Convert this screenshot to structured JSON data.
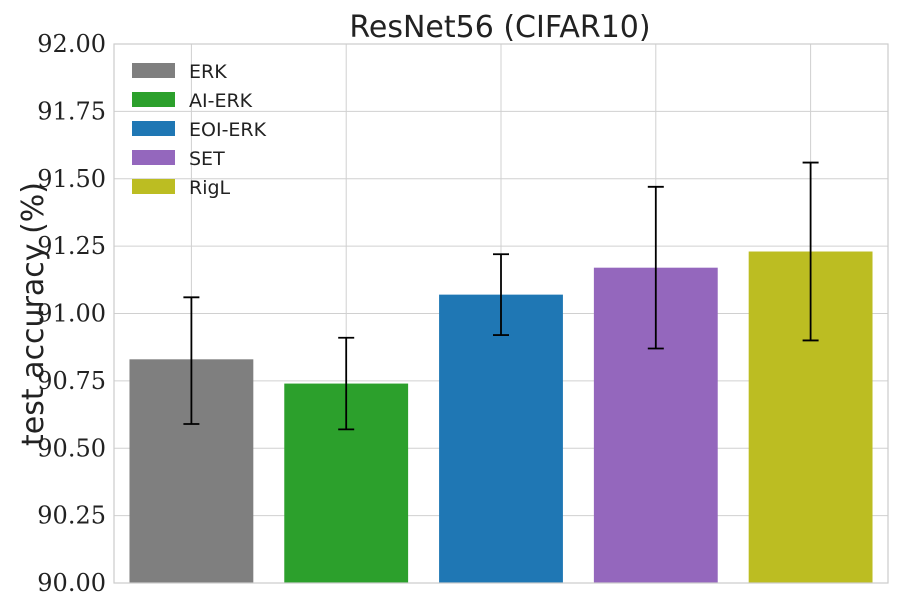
{
  "chart_data": {
    "type": "bar",
    "title": "ResNet56 (CIFAR10)",
    "xlabel": "",
    "ylabel": "test accuracy (%)",
    "ylim": [
      90.0,
      92.0
    ],
    "yticks": [
      "90.00",
      "90.25",
      "90.50",
      "90.75",
      "91.00",
      "91.25",
      "91.50",
      "91.75",
      "92.00"
    ],
    "ytick_values": [
      90.0,
      90.25,
      90.5,
      90.75,
      91.0,
      91.25,
      91.5,
      91.75,
      92.0
    ],
    "grid": true,
    "legend_position": "top-left",
    "series": [
      {
        "name": "ERK",
        "value": 90.83,
        "err_low": 90.59,
        "err_high": 91.06,
        "color": "#7f7f7f"
      },
      {
        "name": "AI-ERK",
        "value": 90.74,
        "err_low": 90.57,
        "err_high": 90.91,
        "color": "#2ca02c"
      },
      {
        "name": "EOI-ERK",
        "value": 91.07,
        "err_low": 90.92,
        "err_high": 91.22,
        "color": "#1f77b4"
      },
      {
        "name": "SET",
        "value": 91.17,
        "err_low": 90.87,
        "err_high": 91.47,
        "color": "#9467bd"
      },
      {
        "name": "RigL",
        "value": 91.23,
        "err_low": 90.9,
        "err_high": 91.56,
        "color": "#bcbd22"
      }
    ]
  }
}
